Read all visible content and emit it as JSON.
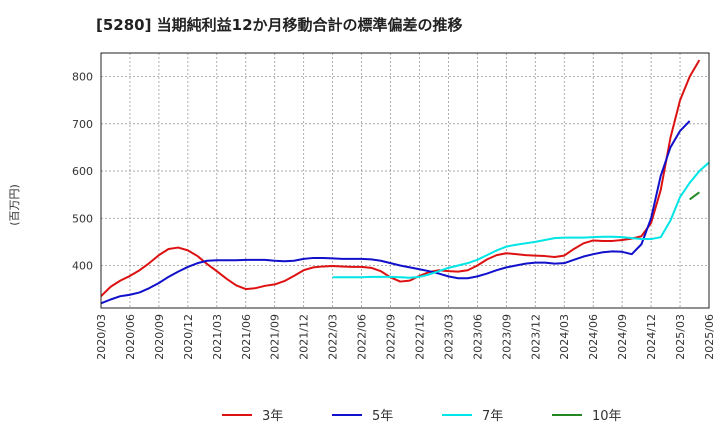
{
  "chart_data": {
    "type": "line",
    "title": "[5280]  当期純利益12か月移動合計の標準偏差の推移",
    "xlabel": "",
    "ylabel": "(百万円)",
    "ylim": [
      310,
      850
    ],
    "yticks": [
      400,
      500,
      600,
      700,
      800
    ],
    "grid": true,
    "legend_position": "bottom-center",
    "x_start": "2020/03",
    "x_ticks": [
      "2020/03",
      "2020/06",
      "2020/09",
      "2020/12",
      "2021/03",
      "2021/06",
      "2021/09",
      "2021/12",
      "2022/03",
      "2022/06",
      "2022/09",
      "2022/12",
      "2023/03",
      "2023/06",
      "2023/09",
      "2023/12",
      "2024/03",
      "2024/06",
      "2024/09",
      "2024/12",
      "2025/03",
      "2025/06"
    ],
    "series": [
      {
        "name": "3年",
        "color": "#dd1111",
        "start_index": 0,
        "values": [
          335,
          355,
          368,
          378,
          390,
          405,
          422,
          435,
          438,
          432,
          420,
          403,
          388,
          372,
          358,
          350,
          352,
          357,
          360,
          367,
          378,
          390,
          396,
          398,
          399,
          398,
          397,
          397,
          395,
          388,
          375,
          366,
          368,
          378,
          386,
          390,
          388,
          387,
          390,
          400,
          413,
          422,
          426,
          424,
          422,
          421,
          420,
          418,
          421,
          435,
          447,
          453,
          452,
          452,
          454,
          457,
          462,
          490,
          560,
          670,
          750,
          800,
          835
        ]
      },
      {
        "name": "5年",
        "color": "#1111cc",
        "start_index": 0,
        "values": [
          320,
          328,
          335,
          338,
          343,
          352,
          363,
          376,
          387,
          397,
          405,
          410,
          411,
          411,
          411,
          412,
          412,
          412,
          410,
          409,
          410,
          414,
          416,
          416,
          415,
          414,
          414,
          414,
          413,
          410,
          405,
          400,
          396,
          392,
          388,
          383,
          377,
          373,
          373,
          377,
          383,
          390,
          396,
          400,
          404,
          406,
          406,
          404,
          405,
          412,
          419,
          424,
          428,
          430,
          429,
          424,
          445,
          500,
          590,
          650,
          685,
          706
        ]
      },
      {
        "name": "7年",
        "color": "#00e5e5",
        "start_index": 24,
        "values": [
          375,
          375,
          375,
          375,
          376,
          376,
          376,
          375,
          374,
          376,
          381,
          388,
          395,
          400,
          405,
          412,
          422,
          432,
          440,
          444,
          447,
          450,
          454,
          458,
          459,
          459,
          459,
          460,
          461,
          461,
          460,
          458,
          456,
          456,
          460,
          495,
          545,
          575,
          600,
          618
        ]
      },
      {
        "name": "10年",
        "color": "#228822",
        "start_index": 61,
        "values": [
          540,
          555
        ]
      }
    ]
  }
}
